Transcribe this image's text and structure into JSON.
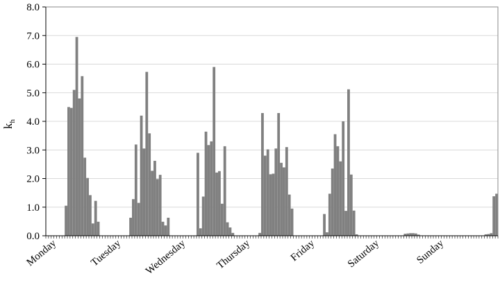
{
  "chart_data": {
    "type": "bar",
    "title": "",
    "xlabel": "",
    "ylabel": "k",
    "ylabel_sub": "h",
    "ylim": [
      0,
      8
    ],
    "yticks": [
      "0.0",
      "1.0",
      "2.0",
      "3.0",
      "4.0",
      "5.0",
      "6.0",
      "7.0",
      "8.0"
    ],
    "grid": true,
    "bar_color": "#808080",
    "hours_per_day": 24,
    "days": [
      "Monday",
      "Tuesday",
      "Wednesday",
      "Thursday",
      "Friday",
      "Saturday",
      "Sunday"
    ],
    "values": [
      0,
      0,
      0,
      0,
      0,
      0,
      0,
      1.05,
      4.5,
      4.47,
      5.1,
      6.95,
      4.8,
      5.58,
      2.73,
      2.02,
      1.42,
      0.43,
      1.22,
      0.49,
      0,
      0,
      0,
      0,
      0,
      0,
      0,
      0,
      0,
      0,
      0,
      0.63,
      1.28,
      3.19,
      1.15,
      4.2,
      3.05,
      5.73,
      3.58,
      2.27,
      2.62,
      1.98,
      2.13,
      0.49,
      0.36,
      0.63,
      0,
      0,
      0,
      0,
      0,
      0,
      0,
      0,
      0,
      0,
      2.9,
      0.26,
      1.37,
      3.64,
      3.17,
      3.3,
      5.9,
      2.21,
      2.26,
      1.12,
      3.13,
      0.47,
      0.29,
      0.1,
      0,
      0,
      0,
      0,
      0,
      0,
      0,
      0,
      0,
      0.1,
      4.29,
      2.8,
      3.02,
      2.15,
      2.17,
      3.05,
      4.29,
      2.55,
      2.39,
      3.1,
      1.44,
      0.95,
      0,
      0,
      0,
      0,
      0,
      0,
      0,
      0,
      0,
      0,
      0,
      0.76,
      0.12,
      1.47,
      2.35,
      3.55,
      3.13,
      2.6,
      4.0,
      0.87,
      5.12,
      2.14,
      0.88,
      0.05,
      0,
      0,
      0,
      0,
      0,
      0,
      0,
      0,
      0,
      0,
      0,
      0,
      0,
      0,
      0,
      0,
      0,
      0.07,
      0.08,
      0.09,
      0.09,
      0.08,
      0.04,
      0,
      0,
      0,
      0,
      0,
      0,
      0,
      0,
      0,
      0,
      0,
      0,
      0,
      0,
      0,
      0,
      0,
      0,
      0,
      0,
      0,
      0,
      0,
      0,
      0.05,
      0.06,
      0.09,
      1.38,
      1.47
    ]
  }
}
